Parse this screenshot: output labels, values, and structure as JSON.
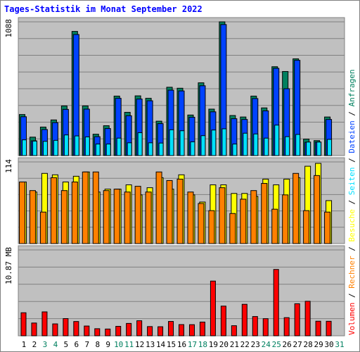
{
  "chart_data": {
    "type": "bar",
    "title": "Tages-Statistik im Monat September 2022",
    "categories": [
      "1",
      "2",
      "3",
      "4",
      "5",
      "6",
      "7",
      "8",
      "9",
      "10",
      "11",
      "12",
      "13",
      "14",
      "15",
      "16",
      "17",
      "18",
      "19",
      "20",
      "21",
      "22",
      "23",
      "24",
      "25",
      "26",
      "27",
      "28",
      "29",
      "30",
      "31"
    ],
    "weekend_categories": [
      "3",
      "4",
      "10",
      "11",
      "17",
      "18",
      "24",
      "25",
      "31"
    ],
    "colors": {
      "title": "#0000ff",
      "weekday_tick": "#000000",
      "weekend_tick": "#008060",
      "plot_background": "#c0c0c0",
      "grid": "#808080",
      "anfragen": "#00805f",
      "dateien": "#0042ff",
      "seiten": "#00e0ff",
      "besuche": "#ffff00",
      "rechner": "#ff8000",
      "volumen": "#ff0000"
    },
    "panels": [
      {
        "name": "top",
        "ytick": "1088",
        "ymax": 1088,
        "series": [
          {
            "name": "Anfragen",
            "values": [
              334,
              150,
              232,
              290,
              404,
              1010,
              404,
              174,
              243,
              484,
              352,
              486,
              466,
              280,
              556,
              548,
              330,
              592,
              378,
              1088,
              326,
              314,
              484,
              388,
              723,
              684,
              787,
              134,
              122,
              314,
              0
            ]
          },
          {
            "name": "Dateien",
            "values": [
              316,
              120,
              212,
              268,
              376,
              985,
              378,
              154,
              220,
              466,
              324,
              460,
              446,
              260,
              532,
              526,
              312,
              568,
              356,
              1066,
              300,
              294,
              464,
              364,
              710,
              544,
              775,
              108,
              110,
              294,
              0
            ]
          },
          {
            "name": "Seiten",
            "values": [
              128,
              118,
              116,
              124,
              168,
              160,
              152,
              94,
              94,
              142,
              104,
              186,
              104,
              102,
              210,
              202,
              112,
              162,
              208,
              218,
              94,
              182,
              176,
              142,
              248,
              154,
              172,
              110,
              110,
              132,
              0
            ]
          }
        ]
      },
      {
        "name": "middle",
        "ytick": "114",
        "ymax": 114,
        "series": [
          {
            "name": "Besuche",
            "values": [
              86,
              72,
              98,
              96,
              86,
              94,
              100,
              72,
              76,
              76,
              82,
              68,
              78,
              92,
              76,
              96,
              68,
              58,
              82,
              82,
              70,
              70,
              66,
              90,
              82,
              90,
              92,
              108,
              112,
              60,
              0
            ]
          },
          {
            "name": "Rechner",
            "values": [
              86,
              74,
              44,
              92,
              74,
              86,
              100,
              100,
              74,
              76,
              72,
              80,
              72,
              100,
              88,
              90,
              72,
              56,
              46,
              78,
              42,
              62,
              74,
              84,
              48,
              68,
              98,
              46,
              95,
              44,
              0
            ]
          }
        ]
      },
      {
        "name": "bottom",
        "ytick": "10.87 MB",
        "ymax": 10.87,
        "series": [
          {
            "name": "Volumen",
            "values": [
              2.92,
              1.62,
              3.03,
              1.51,
              2.18,
              1.81,
              1.24,
              0.9,
              0.86,
              1.2,
              1.57,
              1.91,
              1.17,
              1.15,
              1.82,
              1.42,
              1.41,
              1.74,
              6.93,
              3.76,
              1.28,
              3.99,
              2.44,
              2.17,
              8.4,
              2.3,
              4.06,
              4.37,
              1.85,
              1.84,
              0
            ]
          }
        ]
      }
    ],
    "right_legend": [
      "Volumen",
      "/",
      "Rechner",
      "/",
      "Besuche",
      "/",
      "Seiten",
      "/",
      "Dateien",
      "/",
      "Anfragen"
    ],
    "right_legend_colors": [
      "#ff0000",
      "#000000",
      "#ff8000",
      "#000000",
      "#ffff00",
      "#000000",
      "#00e0ff",
      "#000000",
      "#0042ff",
      "#000000",
      "#00805f"
    ],
    "grid": true,
    "legend_position": "right (vertical)"
  }
}
